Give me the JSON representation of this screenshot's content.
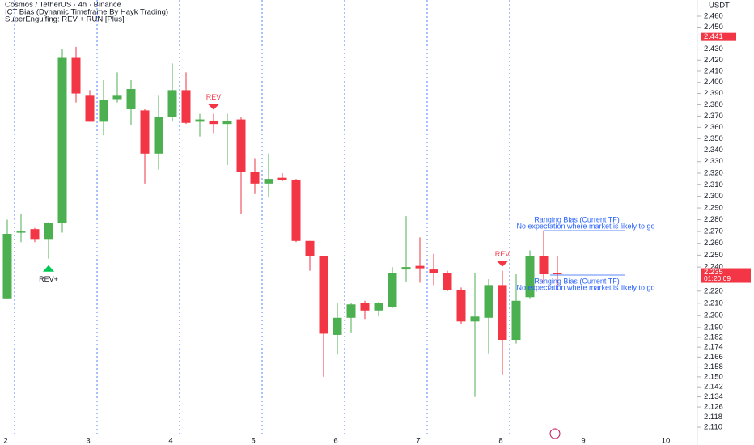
{
  "chart_data": {
    "type": "candlestick",
    "header": [
      "Cosmos / TetherUS · 4h · Binance",
      "ICT Bias (Dynamic Timeframe By Hayk Trading)",
      "SuperEngulfing: REV + RUN [Plus]"
    ],
    "axis_label": "USDT",
    "log_scale": true,
    "up_color": "#4caf50",
    "down_color": "#f23645",
    "categories": [
      "2",
      null,
      null,
      null,
      null,
      null,
      "3",
      null,
      null,
      null,
      null,
      null,
      "4",
      null,
      null,
      null,
      null,
      null,
      "5",
      null,
      null,
      null,
      null,
      null,
      "6",
      null,
      null,
      null,
      null,
      null,
      "7",
      null,
      null,
      null,
      null,
      null,
      "8",
      null,
      null,
      null,
      null
    ],
    "future_categories": [
      "9",
      "10"
    ],
    "open": [
      2.214,
      2.269,
      2.272,
      2.263,
      2.277,
      2.422,
      2.388,
      2.365,
      2.385,
      2.376,
      2.375,
      2.337,
      2.369,
      2.393,
      2.365,
      2.366,
      2.363,
      2.367,
      2.321,
      2.311,
      2.316,
      2.314,
      2.262,
      2.249,
      2.184,
      2.198,
      2.21,
      2.204,
      2.207,
      2.238,
      2.241,
      2.238,
      2.235,
      2.221,
      2.195,
      2.198,
      2.225,
      2.18,
      2.215,
      2.249,
      2.235
    ],
    "high": [
      2.28,
      2.285,
      2.273,
      2.278,
      2.43,
      2.432,
      2.393,
      2.402,
      2.409,
      2.402,
      2.376,
      2.388,
      2.417,
      2.409,
      2.372,
      2.372,
      2.372,
      2.369,
      2.333,
      2.337,
      2.32,
      2.315,
      2.262,
      2.249,
      2.21,
      2.21,
      2.212,
      2.211,
      2.24,
      2.283,
      2.265,
      2.251,
      2.237,
      2.223,
      2.235,
      2.23,
      2.237,
      2.234,
      2.254,
      2.271,
      2.249
    ],
    "low": [
      2.214,
      2.261,
      2.261,
      2.247,
      2.269,
      2.382,
      2.365,
      2.353,
      2.382,
      2.362,
      2.311,
      2.323,
      2.365,
      2.363,
      2.352,
      2.355,
      2.327,
      2.285,
      2.302,
      2.299,
      2.313,
      2.261,
      2.237,
      2.15,
      2.168,
      2.186,
      2.197,
      2.199,
      2.206,
      2.228,
      2.227,
      2.225,
      2.22,
      2.193,
      2.134,
      2.169,
      2.152,
      2.177,
      2.214,
      2.227,
      2.221
    ],
    "close": [
      2.268,
      2.27,
      2.263,
      2.277,
      2.422,
      2.39,
      2.365,
      2.384,
      2.388,
      2.394,
      2.337,
      2.369,
      2.393,
      2.364,
      2.367,
      2.363,
      2.366,
      2.321,
      2.311,
      2.315,
      2.314,
      2.262,
      2.249,
      2.185,
      2.198,
      2.209,
      2.204,
      2.21,
      2.235,
      2.24,
      2.239,
      2.235,
      2.221,
      2.195,
      2.199,
      2.225,
      2.18,
      2.212,
      2.249,
      2.234,
      2.234
    ],
    "ylim": [
      2.1024,
      2.4749
    ],
    "yticks": [
      {
        "value": 2.46,
        "label": "2.460"
      },
      {
        "value": 2.45,
        "label": "2.450"
      },
      {
        "value": 2.43,
        "label": "2.430"
      },
      {
        "value": 2.42,
        "label": "2.420"
      },
      {
        "value": 2.41,
        "label": "2.410"
      },
      {
        "value": 2.4,
        "label": "2.400"
      },
      {
        "value": 2.39,
        "label": "2.390"
      },
      {
        "value": 2.38,
        "label": "2.380"
      },
      {
        "value": 2.37,
        "label": "2.370"
      },
      {
        "value": 2.36,
        "label": "2.360"
      },
      {
        "value": 2.35,
        "label": "2.350"
      },
      {
        "value": 2.34,
        "label": "2.340"
      },
      {
        "value": 2.33,
        "label": "2.330"
      },
      {
        "value": 2.32,
        "label": "2.320"
      },
      {
        "value": 2.31,
        "label": "2.310"
      },
      {
        "value": 2.3,
        "label": "2.300"
      },
      {
        "value": 2.29,
        "label": "2.290"
      },
      {
        "value": 2.28,
        "label": "2.280"
      },
      {
        "value": 2.27,
        "label": "2.270"
      },
      {
        "value": 2.26,
        "label": "2.260"
      },
      {
        "value": 2.25,
        "label": "2.250"
      },
      {
        "value": 2.24,
        "label": "2.240"
      },
      {
        "value": 2.22,
        "label": "2.220"
      },
      {
        "value": 2.21,
        "label": "2.210"
      },
      {
        "value": 2.2,
        "label": "2.200"
      },
      {
        "value": 2.19,
        "label": "2.190"
      },
      2.182,
      2.174,
      2.166,
      2.158,
      {
        "value": 2.15,
        "label": "2.150"
      },
      2.142,
      2.134,
      2.126,
      2.118,
      {
        "value": 2.11,
        "label": "2.110"
      }
    ],
    "high_marker": 2.441,
    "last_price": 2.235,
    "countdown": "01:20:09",
    "signals": [
      {
        "text": "REV+",
        "candle": 3,
        "dir": "up"
      },
      {
        "text": "REV",
        "candle": 15,
        "dir": "down"
      },
      {
        "text": "REV",
        "candle": 36,
        "dir": "down"
      }
    ],
    "bias_notes": [
      {
        "title": "Ranging Bias (Current TF)",
        "text": "No expectation where market is likely to go"
      },
      {
        "title": "Ranging Bias (Current TF)",
        "text": "No expectation where market is likely to go"
      }
    ]
  }
}
